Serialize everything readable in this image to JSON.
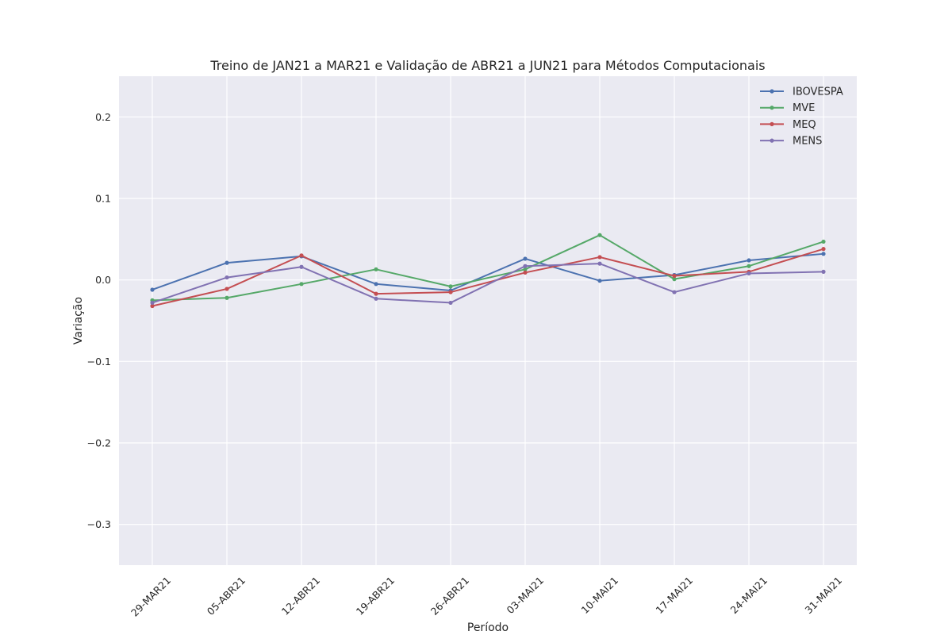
{
  "chart_data": {
    "type": "line",
    "title": "Treino de JAN21 a MAR21 e Validação de ABR21 a JUN21 para Métodos Computacionais",
    "xlabel": "Período",
    "ylabel": "Variação",
    "categories": [
      "29-MAR21",
      "05-ABR21",
      "12-ABR21",
      "19-ABR21",
      "26-ABR21",
      "03-MAI21",
      "10-MAI21",
      "17-MAI21",
      "24-MAI21",
      "31-MAI21"
    ],
    "ylim": [
      -0.35,
      0.25
    ],
    "yticks": [
      0.2,
      0.1,
      0.0,
      -0.1,
      -0.2,
      -0.3
    ],
    "ytick_labels": [
      "0.2",
      "0.1",
      "0.0",
      "−0.1",
      "−0.2",
      "−0.3"
    ],
    "grid": true,
    "legend_position": "top-right",
    "series": [
      {
        "name": "IBOVESPA",
        "color": "#4c72b0",
        "values": [
          -0.012,
          0.021,
          0.029,
          -0.005,
          -0.013,
          0.026,
          -0.001,
          0.006,
          0.024,
          0.032
        ]
      },
      {
        "name": "MVE",
        "color": "#55a868",
        "values": [
          -0.025,
          -0.022,
          -0.005,
          0.013,
          -0.008,
          0.013,
          0.055,
          0.001,
          0.017,
          0.047
        ]
      },
      {
        "name": "MEQ",
        "color": "#c44e52",
        "values": [
          -0.032,
          -0.011,
          0.03,
          -0.017,
          -0.015,
          0.009,
          0.028,
          0.005,
          0.01,
          0.038
        ]
      },
      {
        "name": "MENS",
        "color": "#8172b2",
        "values": [
          -0.028,
          0.003,
          0.016,
          -0.023,
          -0.028,
          0.017,
          0.02,
          -0.015,
          0.008,
          0.01
        ]
      }
    ]
  }
}
